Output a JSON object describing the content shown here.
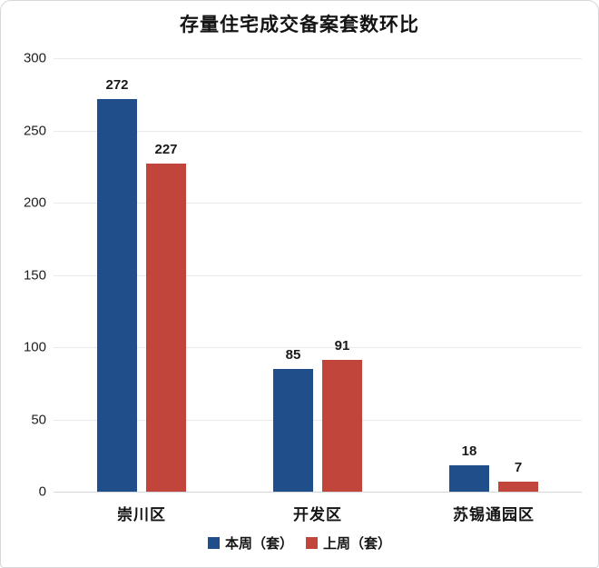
{
  "title": "存量住宅成交备案套数环比",
  "chart_data": {
    "type": "bar",
    "title": "存量住宅成交备案套数环比",
    "categories": [
      "崇川区",
      "开发区",
      "苏锡通园区"
    ],
    "series": [
      {
        "name": "本周（套）",
        "color": "#1f4e8a",
        "values": [
          272,
          85,
          18
        ]
      },
      {
        "name": "上周（套）",
        "color": "#c2453c",
        "values": [
          227,
          91,
          7
        ]
      }
    ],
    "xlabel": "",
    "ylabel": "",
    "ylim": [
      0,
      300
    ],
    "ytick_step": 50,
    "grid": true,
    "legend_position": "bottom"
  }
}
